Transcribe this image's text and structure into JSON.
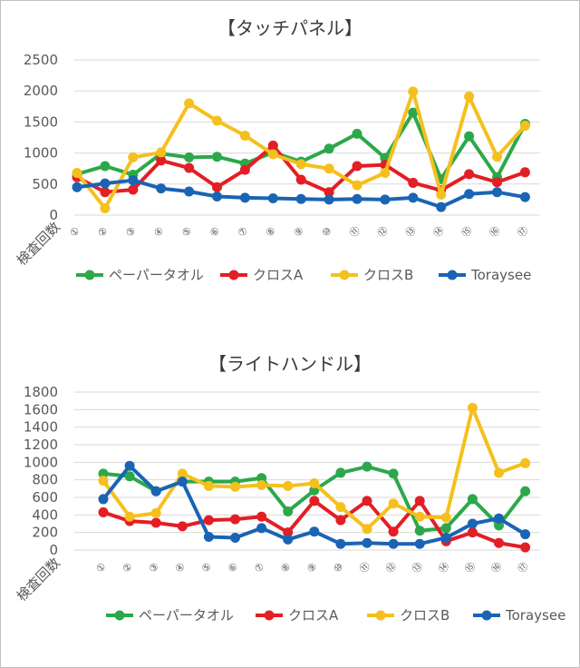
{
  "chart_data": [
    {
      "type": "line",
      "title": "【タッチパネル】",
      "xlabel": "検査回数",
      "ylabel": "",
      "ylim": [
        0,
        2500
      ],
      "yticks": [
        0,
        500,
        1000,
        1500,
        2000,
        2500
      ],
      "grid": true,
      "legend": "bottom",
      "categories": [
        "①",
        "②",
        "③",
        "④",
        "⑤",
        "⑥",
        "⑦",
        "⑧",
        "⑨",
        "⑩",
        "⑪",
        "⑫",
        "⑬",
        "⑭",
        "⑮",
        "⑯",
        "⑰"
      ],
      "series": [
        {
          "name": "ペーパータオル",
          "color": "#2ca84a",
          "values": [
            660,
            790,
            650,
            990,
            930,
            940,
            830,
            1010,
            860,
            1070,
            1310,
            920,
            1650,
            580,
            1270,
            610,
            1470
          ]
        },
        {
          "name": "クロスA",
          "color": "#e31e24",
          "values": [
            610,
            370,
            410,
            880,
            760,
            450,
            730,
            1120,
            570,
            370,
            790,
            810,
            520,
            400,
            660,
            530,
            690
          ]
        },
        {
          "name": "クロスB",
          "color": "#f5c01e",
          "values": [
            680,
            110,
            930,
            1010,
            1800,
            1520,
            1280,
            980,
            820,
            750,
            480,
            680,
            1990,
            330,
            1910,
            940,
            1440
          ]
        },
        {
          "name": "Toraysee",
          "color": "#1a64b4",
          "values": [
            450,
            510,
            560,
            430,
            380,
            300,
            280,
            270,
            260,
            250,
            260,
            250,
            280,
            130,
            340,
            370,
            290
          ]
        }
      ]
    },
    {
      "type": "line",
      "title": "【ライトハンドル】",
      "xlabel": "検査回数",
      "ylabel": "",
      "ylim": [
        0,
        1800
      ],
      "yticks": [
        0,
        200,
        400,
        600,
        800,
        1000,
        1200,
        1400,
        1600,
        1800
      ],
      "grid": true,
      "legend": "bottom",
      "categories": [
        "①",
        "②",
        "③",
        "④",
        "⑤",
        "⑥",
        "⑦",
        "⑧",
        "⑨",
        "⑩",
        "⑪",
        "⑫",
        "⑬",
        "⑭",
        "⑮",
        "⑯",
        "⑰"
      ],
      "series": [
        {
          "name": "ペーパータオル",
          "color": "#2ca84a",
          "values": [
            870,
            840,
            670,
            780,
            780,
            780,
            820,
            440,
            680,
            880,
            950,
            870,
            220,
            250,
            580,
            280,
            670
          ]
        },
        {
          "name": "クロスA",
          "color": "#e31e24",
          "values": [
            430,
            330,
            310,
            270,
            340,
            350,
            380,
            200,
            560,
            340,
            560,
            210,
            560,
            100,
            200,
            80,
            30
          ]
        },
        {
          "name": "クロスB",
          "color": "#f5c01e",
          "values": [
            790,
            380,
            420,
            870,
            730,
            720,
            740,
            730,
            760,
            490,
            240,
            530,
            380,
            370,
            1620,
            880,
            990
          ]
        },
        {
          "name": "Toraysee",
          "color": "#1a64b4",
          "values": [
            580,
            960,
            670,
            780,
            150,
            140,
            250,
            120,
            210,
            70,
            80,
            70,
            70,
            140,
            300,
            360,
            180
          ]
        }
      ]
    }
  ]
}
